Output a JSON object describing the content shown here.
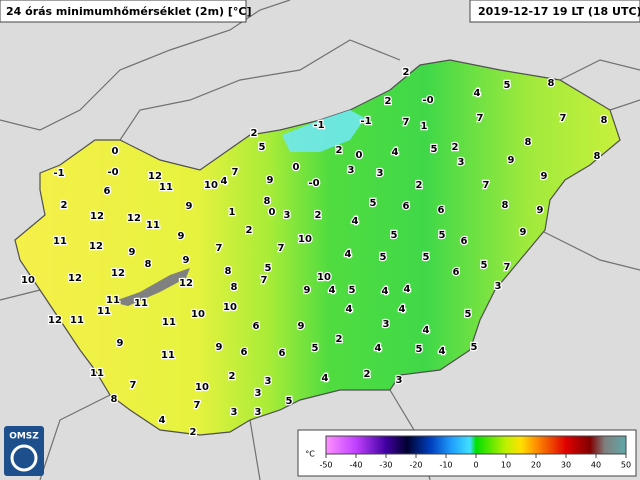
{
  "header": {
    "title": "24 órás minimumhőmérséklet (2m) [°C]",
    "datetime": "2019-12-17 19 LT (18 UTC)"
  },
  "logo": "OMSZ",
  "colorbar": {
    "unit": "°C",
    "ticks": [
      -50,
      -40,
      -30,
      -20,
      -10,
      0,
      10,
      20,
      30,
      40,
      50
    ]
  },
  "stations": [
    "2",
    "2",
    "-0",
    "4",
    "5",
    "8",
    "-1",
    "-1",
    "7",
    "1",
    "7",
    "7",
    "8",
    "2",
    "5",
    "2",
    "0",
    "4",
    "5",
    "2",
    "9",
    "8",
    "8",
    "0",
    "-1",
    "-0",
    "12",
    "11",
    "10",
    "4",
    "7",
    "0",
    "9",
    "-0",
    "3",
    "3",
    "2",
    "3",
    "7",
    "9",
    "6",
    "2",
    "9",
    "1",
    "8",
    "0",
    "3",
    "2",
    "4",
    "5",
    "6",
    "6",
    "8",
    "9",
    "12",
    "12",
    "11",
    "2",
    "10",
    "5",
    "5",
    "6",
    "9",
    "11",
    "12",
    "9",
    "9",
    "7",
    "7",
    "4",
    "5",
    "5",
    "5",
    "7",
    "9",
    "12",
    "8",
    "12",
    "10",
    "5",
    "10",
    "8",
    "7",
    "6",
    "12",
    "8",
    "4",
    "4",
    "3",
    "11",
    "11",
    "9",
    "4",
    "5",
    "10",
    "5",
    "12",
    "11",
    "11",
    "11",
    "10",
    "4",
    "4",
    "3",
    "4",
    "6",
    "9",
    "9",
    "9",
    "6",
    "5",
    "2",
    "4",
    "5",
    "4",
    "11",
    "6",
    "5",
    "11",
    "2",
    "3",
    "4",
    "2",
    "3",
    "7",
    "10",
    "3",
    "5",
    "8",
    "7",
    "3",
    "3",
    "4",
    "2"
  ]
}
